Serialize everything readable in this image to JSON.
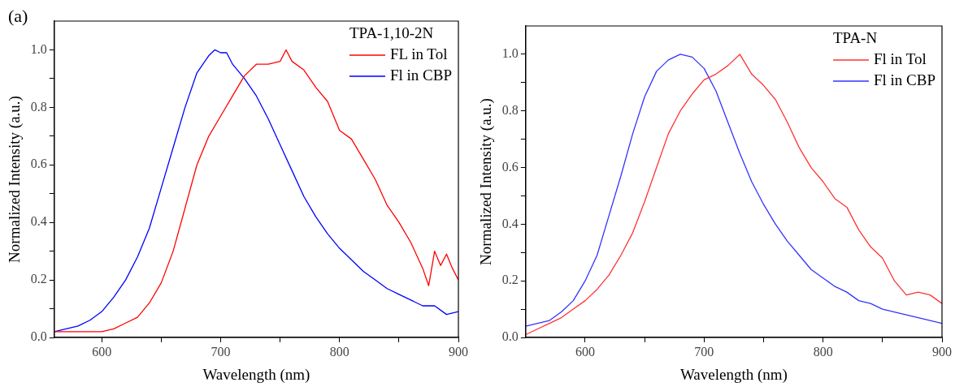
{
  "chart_data": [
    {
      "type": "line",
      "xlabel": "Wavelength (nm)",
      "ylabel": "Normalized Intensity (a.u.)",
      "legend_title": "TPA-1,10-2N",
      "legend": "top right",
      "annotations": [
        "(a)"
      ],
      "xlim": [
        560,
        900
      ],
      "xticks": [
        600,
        {
          "value": 650,
          "label": null
        },
        700,
        {
          "value": 750,
          "label": null
        },
        800,
        {
          "value": 850,
          "label": null
        },
        900
      ],
      "ylim": [
        0,
        1.1
      ],
      "yticks": [
        {
          "value": 0,
          "label": "0.0"
        },
        {
          "value": 0.1,
          "label": null
        },
        {
          "value": 0.2,
          "label": "0.2"
        },
        {
          "value": 0.3,
          "label": null
        },
        {
          "value": 0.4,
          "label": "0.4"
        },
        {
          "value": 0.5,
          "label": null
        },
        {
          "value": 0.6,
          "label": "0.6"
        },
        {
          "value": 0.7,
          "label": null
        },
        {
          "value": 0.8,
          "label": "0.8"
        },
        {
          "value": 0.9,
          "label": null
        },
        {
          "value": 1.0,
          "label": "1.0"
        }
      ],
      "grid": false,
      "marker": "none",
      "line_style": "solid",
      "series": [
        {
          "name": "FL in Tol",
          "color": "#ff0000",
          "x": [
            560,
            570,
            580,
            590,
            600,
            610,
            620,
            630,
            640,
            650,
            660,
            670,
            680,
            690,
            700,
            710,
            720,
            730,
            740,
            750,
            755,
            760,
            770,
            780,
            790,
            800,
            810,
            820,
            830,
            840,
            850,
            860,
            870,
            875,
            880,
            885,
            890,
            895,
            900
          ],
          "values": [
            0.02,
            0.02,
            0.02,
            0.02,
            0.02,
            0.03,
            0.05,
            0.07,
            0.12,
            0.19,
            0.3,
            0.45,
            0.6,
            0.7,
            0.77,
            0.84,
            0.91,
            0.95,
            0.95,
            0.96,
            1.0,
            0.96,
            0.93,
            0.87,
            0.82,
            0.72,
            0.69,
            0.62,
            0.55,
            0.46,
            0.4,
            0.33,
            0.24,
            0.18,
            0.3,
            0.25,
            0.29,
            0.24,
            0.2
          ]
        },
        {
          "name": "Fl in CBP",
          "color": "#0000ff",
          "x": [
            560,
            570,
            580,
            590,
            600,
            610,
            620,
            630,
            640,
            650,
            660,
            670,
            680,
            690,
            695,
            700,
            705,
            710,
            720,
            730,
            740,
            750,
            760,
            770,
            780,
            790,
            800,
            810,
            820,
            830,
            840,
            850,
            860,
            870,
            880,
            890,
            900
          ],
          "values": [
            0.02,
            0.03,
            0.04,
            0.06,
            0.09,
            0.14,
            0.2,
            0.28,
            0.38,
            0.52,
            0.66,
            0.8,
            0.92,
            0.98,
            1.0,
            0.99,
            0.99,
            0.95,
            0.9,
            0.84,
            0.76,
            0.67,
            0.58,
            0.49,
            0.42,
            0.36,
            0.31,
            0.27,
            0.23,
            0.2,
            0.17,
            0.15,
            0.13,
            0.11,
            0.11,
            0.08,
            0.09
          ]
        }
      ]
    },
    {
      "type": "line",
      "xlabel": "Wavelength (nm)",
      "ylabel": "Normalized Intensity (a.u.)",
      "legend_title": "TPA-N",
      "legend": "top right",
      "xlim": [
        550,
        900
      ],
      "xticks": [
        600,
        {
          "value": 650,
          "label": null
        },
        700,
        {
          "value": 750,
          "label": null
        },
        800,
        {
          "value": 850,
          "label": null
        },
        900
      ],
      "ylim": [
        0,
        1.1
      ],
      "yticks": [
        {
          "value": 0,
          "label": "0.0"
        },
        {
          "value": 0.1,
          "label": null
        },
        {
          "value": 0.2,
          "label": "0.2"
        },
        {
          "value": 0.3,
          "label": null
        },
        {
          "value": 0.4,
          "label": "0.4"
        },
        {
          "value": 0.5,
          "label": null
        },
        {
          "value": 0.6,
          "label": "0.6"
        },
        {
          "value": 0.7,
          "label": null
        },
        {
          "value": 0.8,
          "label": "0.8"
        },
        {
          "value": 0.9,
          "label": null
        },
        {
          "value": 1.0,
          "label": "1.0"
        }
      ],
      "grid": false,
      "marker": "none",
      "line_style": "solid",
      "series": [
        {
          "name": "Fl in Tol",
          "color": "#ff3333",
          "x": [
            550,
            560,
            570,
            580,
            590,
            600,
            610,
            620,
            630,
            640,
            650,
            660,
            670,
            680,
            690,
            700,
            710,
            720,
            730,
            740,
            750,
            760,
            770,
            780,
            790,
            800,
            810,
            820,
            830,
            840,
            850,
            860,
            870,
            880,
            890,
            900
          ],
          "values": [
            0.01,
            0.03,
            0.05,
            0.07,
            0.1,
            0.13,
            0.17,
            0.22,
            0.29,
            0.37,
            0.48,
            0.6,
            0.72,
            0.8,
            0.86,
            0.91,
            0.93,
            0.96,
            1.0,
            0.93,
            0.89,
            0.84,
            0.76,
            0.67,
            0.6,
            0.55,
            0.49,
            0.46,
            0.38,
            0.32,
            0.28,
            0.2,
            0.15,
            0.16,
            0.15,
            0.12
          ]
        },
        {
          "name": "Fl in CBP",
          "color": "#3333ff",
          "x": [
            550,
            560,
            570,
            580,
            590,
            600,
            610,
            620,
            630,
            640,
            650,
            660,
            670,
            680,
            690,
            700,
            710,
            720,
            730,
            740,
            750,
            760,
            770,
            780,
            790,
            800,
            810,
            820,
            830,
            840,
            850,
            860,
            870,
            880,
            890,
            900
          ],
          "values": [
            0.04,
            0.05,
            0.06,
            0.09,
            0.13,
            0.2,
            0.29,
            0.43,
            0.57,
            0.72,
            0.85,
            0.94,
            0.98,
            1.0,
            0.99,
            0.95,
            0.87,
            0.76,
            0.65,
            0.55,
            0.47,
            0.4,
            0.34,
            0.29,
            0.24,
            0.21,
            0.18,
            0.16,
            0.13,
            0.12,
            0.1,
            0.09,
            0.08,
            0.07,
            0.06,
            0.05
          ]
        }
      ]
    }
  ]
}
